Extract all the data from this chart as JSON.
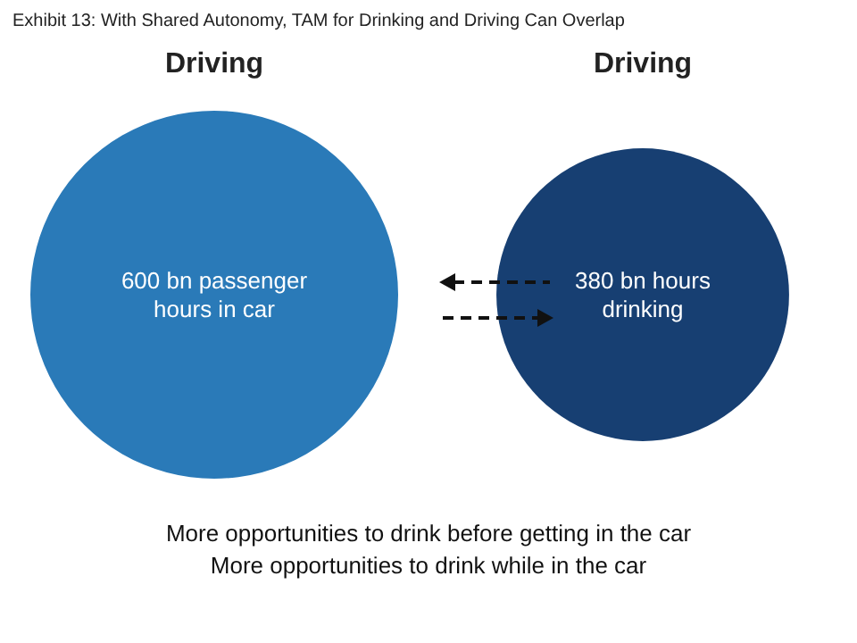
{
  "chart_data": {
    "type": "other",
    "title": "Exhibit 13: With Shared Autonomy, TAM for Drinking and Driving Can Overlap",
    "categories": [
      "Driving",
      "Driving"
    ],
    "values": [
      600,
      380
    ],
    "value_labels": [
      "600 bn passenger\nhours in car",
      "380 bn hours\ndrinking"
    ],
    "colors": [
      "#2a7ab8",
      "#173f72"
    ],
    "annotations": [
      "More opportunities to drink before getting in the car",
      "More opportunities to drink while in the car"
    ]
  }
}
